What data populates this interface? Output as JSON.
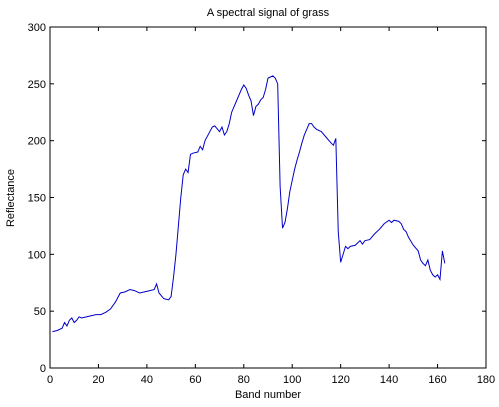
{
  "chart_data": {
    "type": "line",
    "title": "A spectral signal of grass",
    "x_label": "Band number",
    "y_label": "Reflectance",
    "xlim": [
      0,
      180
    ],
    "xticks": [
      0,
      20,
      40,
      60,
      80,
      100,
      120,
      140,
      160,
      180
    ],
    "ylim": [
      0,
      300
    ],
    "yticks": [
      0,
      50,
      100,
      150,
      200,
      250,
      300
    ],
    "series": [
      {
        "color": "#0000c8",
        "x": [
          1,
          3,
          5,
          6,
          7,
          8,
          9,
          10,
          11,
          12,
          13,
          15,
          17,
          19,
          21,
          23,
          25,
          27,
          29,
          31,
          33,
          35,
          37,
          39,
          41,
          43,
          44,
          45,
          47,
          49,
          50,
          51,
          52,
          53,
          54,
          55,
          56,
          57,
          58,
          59,
          61,
          62,
          63,
          64,
          66,
          67,
          68,
          70,
          71,
          72,
          73,
          74,
          75,
          76,
          77,
          78,
          79,
          80,
          81,
          82,
          83,
          84,
          85,
          86,
          87,
          88,
          89,
          90,
          91,
          92,
          93,
          94,
          95,
          96,
          97,
          98,
          99,
          100,
          101,
          102,
          103,
          104,
          105,
          106,
          107,
          108,
          109,
          110,
          112,
          114,
          116,
          117,
          118,
          119,
          120,
          121,
          122,
          123,
          124,
          126,
          128,
          129,
          130,
          132,
          134,
          136,
          138,
          140,
          141,
          142,
          144,
          145,
          146,
          147,
          148,
          150,
          152,
          153,
          154,
          155,
          156,
          157,
          158,
          159,
          160,
          161,
          162,
          163
        ],
        "values": [
          32,
          33,
          35,
          40,
          37,
          42,
          44,
          40,
          42,
          45,
          44,
          45,
          46,
          47,
          47,
          49,
          52,
          58,
          66,
          67,
          69,
          68,
          66,
          67,
          68,
          69,
          74,
          66,
          61,
          60,
          63,
          80,
          100,
          125,
          150,
          170,
          175,
          172,
          188,
          189,
          190,
          195,
          192,
          200,
          208,
          212,
          213,
          208,
          212,
          205,
          208,
          215,
          225,
          230,
          235,
          240,
          245,
          249,
          246,
          240,
          235,
          222,
          230,
          232,
          236,
          238,
          245,
          255,
          256,
          257,
          255,
          250,
          160,
          123,
          128,
          140,
          155,
          165,
          175,
          183,
          190,
          198,
          205,
          210,
          215,
          215,
          212,
          210,
          208,
          203,
          198,
          196,
          202,
          120,
          93,
          100,
          107,
          105,
          107,
          108,
          112,
          109,
          112,
          113,
          118,
          122,
          127,
          130,
          128,
          130,
          129,
          127,
          122,
          120,
          115,
          108,
          103,
          95,
          92,
          90,
          95,
          86,
          82,
          80,
          82,
          78,
          103,
          92
        ]
      }
    ]
  }
}
